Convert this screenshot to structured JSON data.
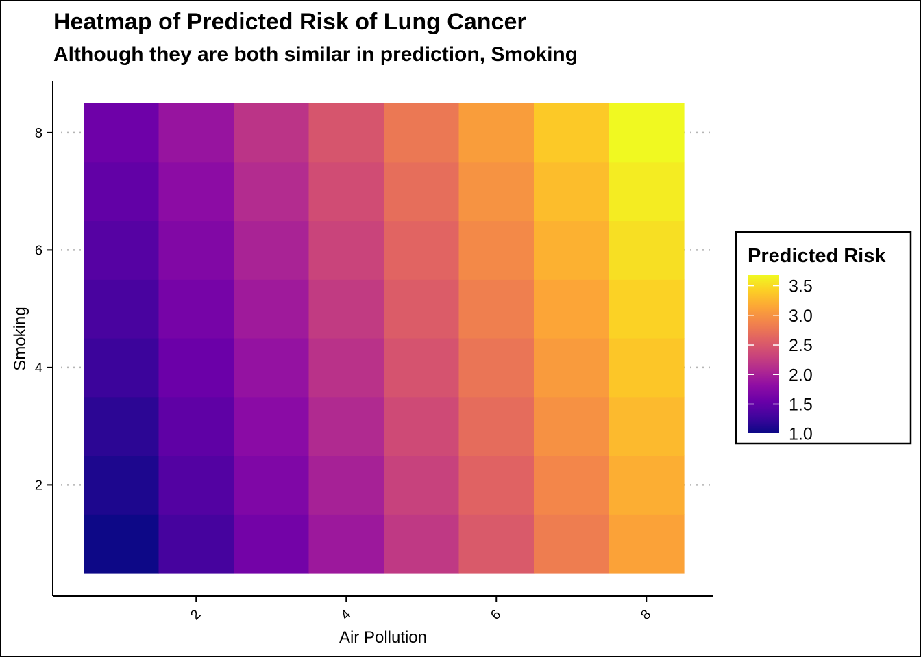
{
  "chart_data": {
    "type": "heatmap",
    "title": "Heatmap of Predicted Risk of Lung Cancer",
    "subtitle": "Although they are both similar in prediction, Smoking",
    "xlabel": "Air Pollution",
    "ylabel": "Smoking",
    "x": [
      1,
      2,
      3,
      4,
      5,
      6,
      7,
      8
    ],
    "y": [
      1,
      2,
      3,
      4,
      5,
      6,
      7,
      8
    ],
    "xlim": [
      0.5,
      8.5
    ],
    "ylim": [
      0.5,
      8.5
    ],
    "x_ticks": [
      "2",
      "4",
      "6",
      "8"
    ],
    "y_ticks": [
      "2",
      "4",
      "6",
      "8"
    ],
    "x_tick_values": [
      2,
      4,
      6,
      8
    ],
    "y_tick_values": [
      2,
      4,
      6,
      8
    ],
    "z": [
      [
        1.02,
        1.32,
        1.62,
        1.92,
        2.22,
        2.52,
        2.82,
        3.12
      ],
      [
        1.1,
        1.4,
        1.7,
        2.0,
        2.3,
        2.6,
        2.9,
        3.2
      ],
      [
        1.18,
        1.48,
        1.78,
        2.08,
        2.38,
        2.68,
        2.98,
        3.28
      ],
      [
        1.26,
        1.56,
        1.86,
        2.16,
        2.46,
        2.76,
        3.06,
        3.36
      ],
      [
        1.34,
        1.64,
        1.94,
        2.24,
        2.54,
        2.84,
        3.14,
        3.44
      ],
      [
        1.42,
        1.72,
        2.02,
        2.32,
        2.62,
        2.92,
        3.22,
        3.52
      ],
      [
        1.5,
        1.8,
        2.1,
        2.4,
        2.7,
        3.0,
        3.3,
        3.6
      ],
      [
        1.58,
        1.88,
        2.18,
        2.48,
        2.78,
        3.08,
        3.38,
        3.68
      ]
    ],
    "colorscale": "plasma",
    "grid": "dotted horizontal major",
    "legend": {
      "title": "Predicted Risk",
      "placement": "right",
      "breaks": [
        "1.0",
        "1.5",
        "2.0",
        "2.5",
        "3.0",
        "3.5"
      ],
      "break_values": [
        1.0,
        1.5,
        2.0,
        2.5,
        3.0,
        3.5
      ],
      "limits": [
        1.02,
        3.68
      ]
    }
  }
}
